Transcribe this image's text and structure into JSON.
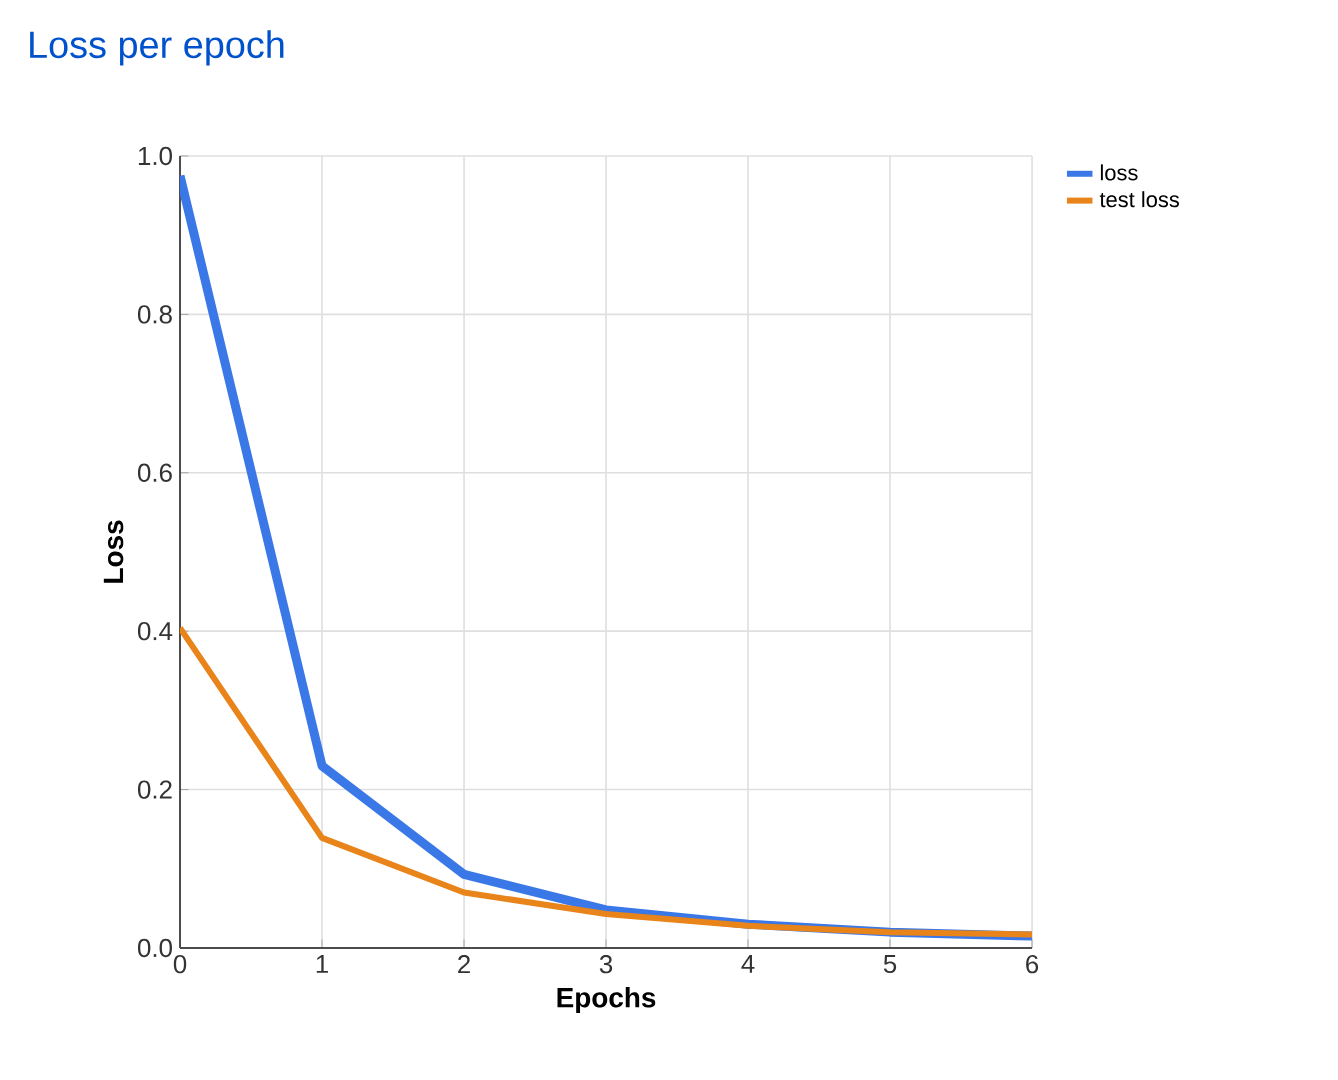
{
  "chart_data": {
    "type": "line",
    "title": "Loss per epoch",
    "xlabel": "Epochs",
    "ylabel": "Loss",
    "x": [
      0,
      1,
      2,
      3,
      4,
      5,
      6
    ],
    "series": [
      {
        "name": "loss",
        "color": "#3b78e7",
        "values": [
          0.975,
          0.23,
          0.093,
          0.048,
          0.03,
          0.02,
          0.015
        ]
      },
      {
        "name": "test loss",
        "color": "#e8841a",
        "values": [
          0.404,
          0.139,
          0.07,
          0.043,
          0.028,
          0.02,
          0.017
        ]
      }
    ],
    "xlim": [
      0,
      6
    ],
    "ylim": [
      0,
      1
    ],
    "xticks": [
      0,
      1,
      2,
      3,
      4,
      5,
      6
    ],
    "yticks": [
      {
        "value": 0,
        "label": "0.0"
      },
      {
        "value": 0.2,
        "label": "0.2"
      },
      {
        "value": 0.4,
        "label": "0.4"
      },
      {
        "value": 0.6,
        "label": "0.6"
      },
      {
        "value": 0.8,
        "label": "0.8"
      },
      {
        "value": 1,
        "label": "1.0"
      }
    ],
    "grid": true,
    "legend": "top right",
    "line_style": "solid"
  }
}
